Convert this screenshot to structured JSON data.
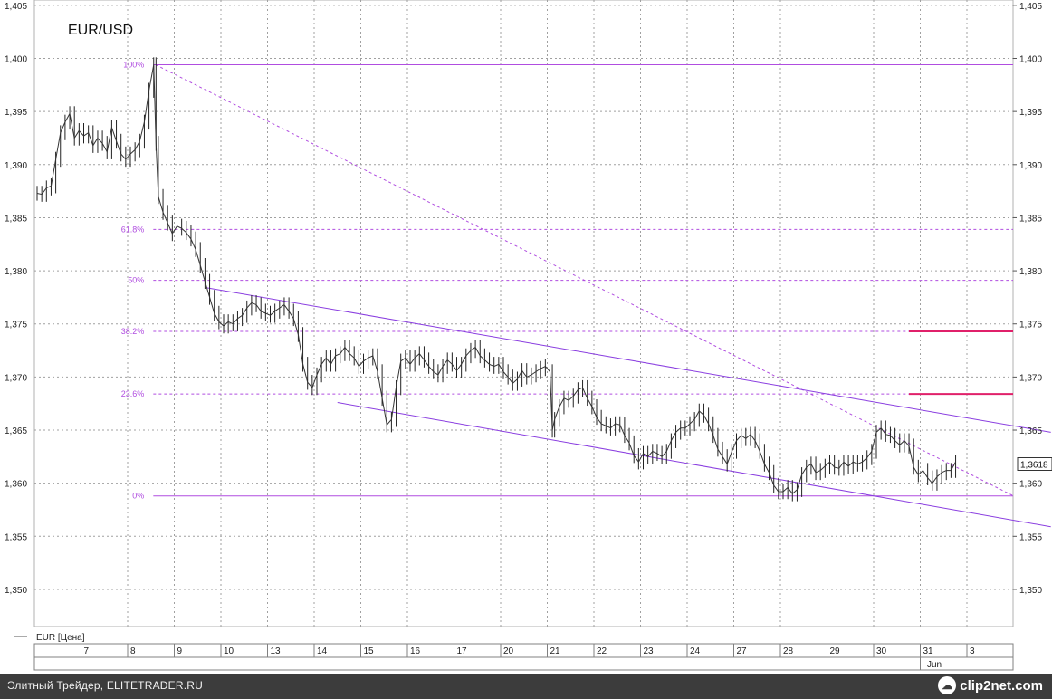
{
  "chart_data": {
    "type": "line",
    "title": "EUR/USD",
    "legend": {
      "label": "EUR [Цена]",
      "position": "bottom-left"
    },
    "ylim": [
      1.3465,
      1.4055
    ],
    "y_ticks": [
      "1,405",
      "1,400",
      "1,395",
      "1,390",
      "1,385",
      "1,380",
      "1,375",
      "1,370",
      "1,365",
      "1,360",
      "1,355",
      "1,350"
    ],
    "y_tick_values": [
      1.405,
      1.4,
      1.395,
      1.39,
      1.385,
      1.38,
      1.375,
      1.37,
      1.365,
      1.36,
      1.355,
      1.35
    ],
    "x_ticks": [
      "7",
      "8",
      "9",
      "10",
      "13",
      "14",
      "15",
      "16",
      "17",
      "20",
      "21",
      "22",
      "23",
      "24",
      "27",
      "28",
      "29",
      "30",
      "31",
      "3"
    ],
    "x_sublabel": "Jun",
    "grid": true,
    "last_price_label": "1,3618",
    "last_price": 1.3618,
    "fibonacci": {
      "high": 1.3994,
      "low": 1.3588,
      "levels": [
        {
          "label": "100%",
          "value": 1.3994
        },
        {
          "label": "61.8%",
          "value": 1.3839
        },
        {
          "label": "50%",
          "value": 1.3791
        },
        {
          "label": "38.2%",
          "value": 1.3743
        },
        {
          "label": "23.6%",
          "value": 1.3684
        },
        {
          "label": "0%",
          "value": 1.3588
        }
      ]
    },
    "channel": {
      "upper": [
        {
          "x": 2.7,
          "y": 1.3784
        },
        {
          "x": 20.8,
          "y": 1.3648
        }
      ],
      "lower": [
        {
          "x": 5.5,
          "y": 1.3676
        },
        {
          "x": 20.8,
          "y": 1.3559
        }
      ]
    },
    "diagonal": [
      {
        "x": 1.6,
        "y": 1.3994
      },
      {
        "x": 20.0,
        "y": 1.3588
      }
    ],
    "pink_levels": [
      1.3743,
      1.3684
    ],
    "series": [
      {
        "values": [
          [
            0.0,
            1.3873
          ],
          [
            0.1,
            1.3872
          ],
          [
            0.2,
            1.3878
          ],
          [
            0.3,
            1.388
          ],
          [
            0.4,
            1.3905
          ],
          [
            0.5,
            1.393
          ],
          [
            0.6,
            1.394
          ],
          [
            0.7,
            1.3948
          ],
          [
            0.8,
            1.3925
          ],
          [
            0.9,
            1.3932
          ],
          [
            1.0,
            1.3927
          ],
          [
            1.1,
            1.393
          ],
          [
            1.2,
            1.3918
          ],
          [
            1.3,
            1.3925
          ],
          [
            1.4,
            1.392
          ],
          [
            1.5,
            1.3912
          ],
          [
            1.6,
            1.3935
          ],
          [
            1.7,
            1.3922
          ],
          [
            1.8,
            1.391
          ],
          [
            1.9,
            1.3905
          ],
          [
            2.0,
            1.391
          ],
          [
            2.1,
            1.3914
          ],
          [
            2.2,
            1.3922
          ],
          [
            2.3,
            1.394
          ],
          [
            2.4,
            1.397
          ],
          [
            2.5,
            1.3994
          ],
          [
            2.55,
            1.392
          ],
          [
            2.6,
            1.387
          ],
          [
            2.7,
            1.3855
          ],
          [
            2.8,
            1.3845
          ],
          [
            2.9,
            1.3835
          ],
          [
            3.0,
            1.3842
          ],
          [
            3.1,
            1.384
          ],
          [
            3.2,
            1.3836
          ],
          [
            3.3,
            1.383
          ],
          [
            3.4,
            1.382
          ],
          [
            3.5,
            1.3805
          ],
          [
            3.6,
            1.379
          ],
          [
            3.7,
            1.3775
          ],
          [
            3.8,
            1.376
          ],
          [
            3.9,
            1.3752
          ],
          [
            4.0,
            1.3748
          ],
          [
            4.1,
            1.3752
          ],
          [
            4.2,
            1.375
          ],
          [
            4.3,
            1.3755
          ],
          [
            4.4,
            1.3758
          ],
          [
            4.5,
            1.3765
          ],
          [
            4.6,
            1.377
          ],
          [
            4.7,
            1.3768
          ],
          [
            4.8,
            1.3762
          ],
          [
            4.9,
            1.376
          ],
          [
            5.0,
            1.3758
          ],
          [
            5.1,
            1.3762
          ],
          [
            5.2,
            1.3765
          ],
          [
            5.3,
            1.3768
          ],
          [
            5.4,
            1.3762
          ],
          [
            5.5,
            1.3755
          ],
          [
            5.6,
            1.374
          ],
          [
            5.7,
            1.3712
          ],
          [
            5.8,
            1.3695
          ],
          [
            5.9,
            1.369
          ],
          [
            6.0,
            1.3702
          ],
          [
            6.1,
            1.3712
          ],
          [
            6.2,
            1.3718
          ],
          [
            6.3,
            1.3712
          ],
          [
            6.4,
            1.372
          ],
          [
            6.5,
            1.3722
          ],
          [
            6.6,
            1.3728
          ],
          [
            6.7,
            1.3722
          ],
          [
            6.8,
            1.3718
          ],
          [
            6.9,
            1.371
          ],
          [
            7.0,
            1.3715
          ],
          [
            7.1,
            1.3718
          ],
          [
            7.2,
            1.372
          ],
          [
            7.3,
            1.3705
          ],
          [
            7.4,
            1.368
          ],
          [
            7.5,
            1.3655
          ],
          [
            7.6,
            1.366
          ],
          [
            7.7,
            1.369
          ],
          [
            7.8,
            1.3715
          ],
          [
            7.9,
            1.3718
          ],
          [
            8.0,
            1.3712
          ],
          [
            8.1,
            1.3718
          ],
          [
            8.2,
            1.3722
          ],
          [
            8.3,
            1.3716
          ],
          [
            8.4,
            1.371
          ],
          [
            8.5,
            1.3705
          ],
          [
            8.6,
            1.3702
          ],
          [
            8.7,
            1.371
          ],
          [
            8.8,
            1.3716
          ],
          [
            8.9,
            1.3712
          ],
          [
            9.0,
            1.3706
          ],
          [
            9.1,
            1.3712
          ],
          [
            9.2,
            1.372
          ],
          [
            9.3,
            1.3725
          ],
          [
            9.4,
            1.3728
          ],
          [
            9.5,
            1.372
          ],
          [
            9.6,
            1.3716
          ],
          [
            9.7,
            1.3712
          ],
          [
            9.8,
            1.371
          ],
          [
            9.9,
            1.3712
          ],
          [
            10.0,
            1.3705
          ],
          [
            10.1,
            1.37
          ],
          [
            10.2,
            1.3694
          ],
          [
            10.3,
            1.3698
          ],
          [
            10.4,
            1.3706
          ],
          [
            10.5,
            1.37
          ],
          [
            10.6,
            1.3702
          ],
          [
            10.7,
            1.3705
          ],
          [
            10.8,
            1.3708
          ],
          [
            10.9,
            1.371
          ],
          [
            11.0,
            1.3705
          ],
          [
            11.05,
            1.365
          ],
          [
            11.1,
            1.366
          ],
          [
            11.2,
            1.3672
          ],
          [
            11.3,
            1.368
          ],
          [
            11.4,
            1.3678
          ],
          [
            11.5,
            1.3682
          ],
          [
            11.6,
            1.3688
          ],
          [
            11.7,
            1.369
          ],
          [
            11.8,
            1.368
          ],
          [
            11.9,
            1.3672
          ],
          [
            12.0,
            1.3662
          ],
          [
            12.1,
            1.3656
          ],
          [
            12.2,
            1.3654
          ],
          [
            12.3,
            1.3652
          ],
          [
            12.4,
            1.3656
          ],
          [
            12.5,
            1.3655
          ],
          [
            12.6,
            1.3645
          ],
          [
            12.7,
            1.3638
          ],
          [
            12.8,
            1.3626
          ],
          [
            12.9,
            1.362
          ],
          [
            13.0,
            1.3628
          ],
          [
            13.1,
            1.3625
          ],
          [
            13.2,
            1.363
          ],
          [
            13.3,
            1.3628
          ],
          [
            13.4,
            1.3625
          ],
          [
            13.5,
            1.363
          ],
          [
            13.6,
            1.364
          ],
          [
            13.7,
            1.3648
          ],
          [
            13.8,
            1.3652
          ],
          [
            13.9,
            1.3652
          ],
          [
            14.0,
            1.3656
          ],
          [
            14.1,
            1.366
          ],
          [
            14.2,
            1.3668
          ],
          [
            14.3,
            1.3664
          ],
          [
            14.4,
            1.3656
          ],
          [
            14.5,
            1.3645
          ],
          [
            14.6,
            1.3632
          ],
          [
            14.7,
            1.3625
          ],
          [
            14.8,
            1.3618
          ],
          [
            14.9,
            1.363
          ],
          [
            15.0,
            1.364
          ],
          [
            15.1,
            1.3645
          ],
          [
            15.2,
            1.3642
          ],
          [
            15.3,
            1.3646
          ],
          [
            15.4,
            1.364
          ],
          [
            15.5,
            1.363
          ],
          [
            15.6,
            1.3618
          ],
          [
            15.7,
            1.361
          ],
          [
            15.8,
            1.3598
          ],
          [
            15.9,
            1.3592
          ],
          [
            16.0,
            1.3592
          ],
          [
            16.1,
            1.3596
          ],
          [
            16.2,
            1.359
          ],
          [
            16.3,
            1.3594
          ],
          [
            16.4,
            1.3608
          ],
          [
            16.5,
            1.3615
          ],
          [
            16.6,
            1.3618
          ],
          [
            16.7,
            1.361
          ],
          [
            16.8,
            1.3612
          ],
          [
            16.9,
            1.3616
          ],
          [
            17.0,
            1.362
          ],
          [
            17.1,
            1.3615
          ],
          [
            17.2,
            1.3614
          ],
          [
            17.3,
            1.362
          ],
          [
            17.4,
            1.3616
          ],
          [
            17.5,
            1.362
          ],
          [
            17.6,
            1.3618
          ],
          [
            17.7,
            1.362
          ],
          [
            17.8,
            1.3624
          ],
          [
            17.9,
            1.363
          ],
          [
            18.0,
            1.3648
          ],
          [
            18.1,
            1.3652
          ],
          [
            18.2,
            1.3646
          ],
          [
            18.3,
            1.3645
          ],
          [
            18.4,
            1.364
          ],
          [
            18.5,
            1.3636
          ],
          [
            18.6,
            1.364
          ],
          [
            18.7,
            1.3635
          ],
          [
            18.8,
            1.3615
          ],
          [
            18.9,
            1.3608
          ],
          [
            19.0,
            1.3612
          ],
          [
            19.1,
            1.3605
          ],
          [
            19.2,
            1.36
          ],
          [
            19.3,
            1.3606
          ],
          [
            19.4,
            1.361
          ],
          [
            19.5,
            1.3612
          ],
          [
            19.6,
            1.3612
          ],
          [
            19.7,
            1.362
          ]
        ]
      }
    ]
  },
  "footer": {
    "text": "Элитный Трейдер, ELITETRADER.RU",
    "watermark": "clip2net.com"
  }
}
